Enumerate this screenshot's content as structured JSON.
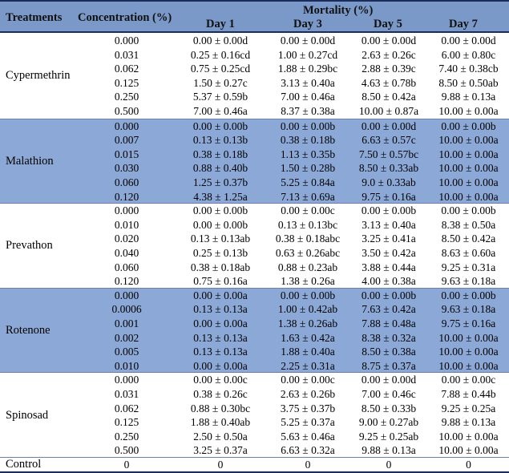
{
  "header": {
    "treatments": "Treatments",
    "concentration": "Concentration (%)",
    "mortality": "Mortality (%)",
    "days": [
      "Day 1",
      "Day 3",
      "Day 5",
      "Day 7"
    ]
  },
  "groups": [
    {
      "name": "Cypermethrin",
      "shaded": false,
      "rows": [
        [
          "0.000",
          "0.00 ± 0.00d",
          "0.00 ± 0.00d",
          "0.00 ± 0.00d",
          "0.00 ± 0.00d"
        ],
        [
          "0.031",
          "0.25 ± 0.16cd",
          "1.00 ± 0.27cd",
          "2.63 ± 0.26c",
          "6.00 ± 0.80c"
        ],
        [
          "0.062",
          "0.75 ± 0.25cd",
          "1.88 ± 0.29bc",
          "2.88 ± 0.39c",
          "7.40 ± 0.38cb"
        ],
        [
          "0.125",
          "1.50 ± 0.27c",
          "3.13 ± 0.40a",
          "4.63 ± 0.78b",
          "8.50 ± 0.50ab"
        ],
        [
          "0.250",
          "5.37 ± 0.59b",
          "7.00 ± 0.46a",
          "8.50 ± 0.42a",
          "9.88 ± 0.13a"
        ],
        [
          "0.500",
          "7.00 ± 0.46a",
          "8.37 ± 0.38a",
          "10.00 ± 0.87a",
          "10.00 ± 0.00a"
        ]
      ]
    },
    {
      "name": "Malathion",
      "shaded": true,
      "rows": [
        [
          "0.000",
          "0.00 ± 0.00b",
          "0.00 ± 0.00b",
          "0.00 ± 0.00d",
          "0.00 ± 0.00b"
        ],
        [
          "0.007",
          "0.13 ± 0.13b",
          "0.38 ± 0.18b",
          "6.63 ± 0.57c",
          "10.00 ± 0.00a"
        ],
        [
          "0.015",
          "0.38 ± 0.18b",
          "1.13 ± 0.35b",
          "7.50 ± 0.57bc",
          "10.00 ± 0.00a"
        ],
        [
          "0.030",
          "0.88 ± 0.40b",
          "1.50 ± 0.28b",
          "8.50 ± 0.33ab",
          "10.00 ± 0.00a"
        ],
        [
          "0.060",
          "1.25 ± 0.37b",
          "5.25 ± 0.84a",
          "9.0 ± 0.33ab",
          "10.00 ± 0.00a"
        ],
        [
          "0.120",
          "4.38 ± 1.25a",
          "7.13 ± 0.69a",
          "9.75 ± 0.16a",
          "10.00 ± 0.00a"
        ]
      ]
    },
    {
      "name": "Prevathon",
      "shaded": false,
      "rows": [
        [
          "0.000",
          "0.00 ± 0.00b",
          "0.00 ± 0.00c",
          "0.00 ± 0.00b",
          "0.00 ± 0.00b"
        ],
        [
          "0.010",
          "0.00 ± 0.00b",
          "0.13 ± 0.13bc",
          "3.13 ± 0.40a",
          "8.38 ± 0.50a"
        ],
        [
          "0.020",
          "0.13 ± 0.13ab",
          "0.38 ± 0.18abc",
          "3.25 ± 0.41a",
          "8.50 ± 0.42a"
        ],
        [
          "0.040",
          "0.25 ± 0.13b",
          "0.63 ± 0.26abc",
          "3.50 ± 0.42a",
          "8.63 ± 0.60a"
        ],
        [
          "0.060",
          "0.38 ± 0.18ab",
          "0.88 ± 0.23ab",
          "3.88 ± 0.44a",
          "9.25 ± 0.31a"
        ],
        [
          "0.120",
          "0.75 ± 0.16a",
          "1.38 ± 0.26a",
          "4.00 ± 0.38a",
          "9.63 ± 0.18a"
        ]
      ]
    },
    {
      "name": "Rotenone",
      "shaded": true,
      "rows": [
        [
          "0.000",
          "0.00 ± 0.00a",
          "0.00 ± 0.00b",
          "0.00 ± 0.00b",
          "0.00 ± 0.00b"
        ],
        [
          "0.0006",
          "0.13 ± 0.13a",
          "1.00 ± 0.42ab",
          "7.63 ± 0.42a",
          "9.63 ± 0.18a"
        ],
        [
          "0.001",
          "0.00 ± 0.00a",
          "1.38 ± 0.26ab",
          "7.88 ± 0.48a",
          "9.75 ± 0.16a"
        ],
        [
          "0.002",
          "0.13 ± 0.13a",
          "1.63 ± 0.42a",
          "8.38 ± 0.32a",
          "10.00 ± 0.00a"
        ],
        [
          "0.005",
          "0.13 ± 0.13a",
          "1.88 ± 0.40a",
          "8.50 ± 0.38a",
          "10.00 ± 0.00a"
        ],
        [
          "0.010",
          "0.00 ± 0.00a",
          "2.25 ± 0.31a",
          "8.75 ± 0.37a",
          "10.00 ± 0.00a"
        ]
      ]
    },
    {
      "name": "Spinosad",
      "shaded": false,
      "rows": [
        [
          "0.000",
          "0.00 ± 0.00c",
          "0.00 ± 0.00c",
          "0.00 ± 0.00d",
          "0.00 ± 0.00c"
        ],
        [
          "0.031",
          "0.38 ± 0.26c",
          "2.63 ± 0.26b",
          "7.00 ± 0.46c",
          "7.88 ± 0.44b"
        ],
        [
          "0.062",
          "0.88 ± 0.30bc",
          "3.75 ± 0.37b",
          "8.50 ± 0.33b",
          "9.25 ± 0.25a"
        ],
        [
          "0.125",
          "1.88 ± 0.40ab",
          "5.25 ± 0.37a",
          "9.00 ± 0.27ab",
          "9.88 ± 0.13a"
        ],
        [
          "0.250",
          "2.50 ± 0.50a",
          "5.63 ± 0.46a",
          "9.25 ± 0.25ab",
          "10.00 ± 0.00a"
        ],
        [
          "0.500",
          "3.25 ± 0.37a",
          "6.63 ± 0.32a",
          "9.88 ± 0.13a",
          "10.00 ± 0.00a"
        ]
      ]
    },
    {
      "name": "Control",
      "shaded": false,
      "rows": [
        [
          "0",
          "0",
          "0",
          "0",
          "0"
        ]
      ]
    }
  ]
}
